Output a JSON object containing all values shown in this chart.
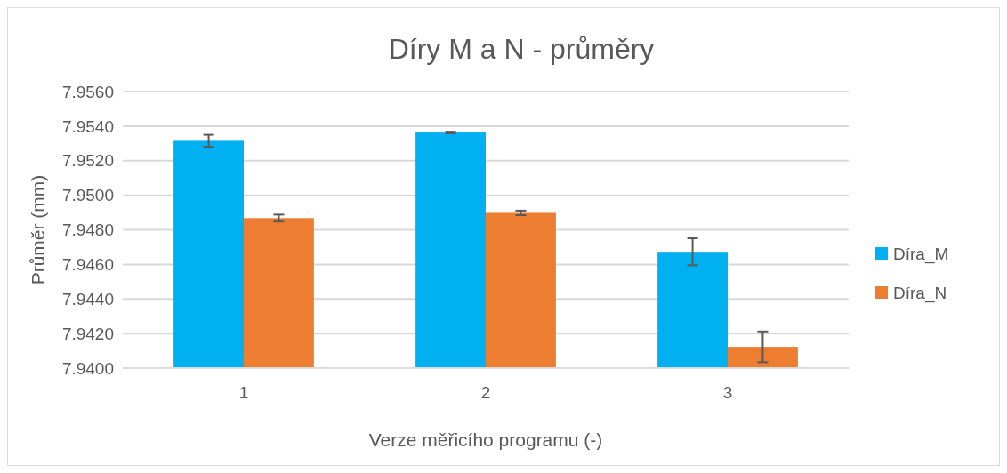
{
  "chart_data": {
    "type": "bar",
    "title": "Díry M a N - průměry",
    "xlabel": "Verze měřicího programu (-)",
    "ylabel": "Průměr (mm)",
    "categories": [
      "1",
      "2",
      "3"
    ],
    "series": [
      {
        "name": "Díra_M",
        "color": "#00b0f0",
        "values": [
          7.95315,
          7.95363,
          7.94673
        ],
        "errors": [
          0.00035,
          5e-05,
          0.00078
        ]
      },
      {
        "name": "Díra_N",
        "color": "#ed7d31",
        "values": [
          7.94868,
          7.94898,
          7.94123
        ],
        "errors": [
          0.0002,
          0.00013,
          0.00089
        ]
      }
    ],
    "ylim": [
      7.94,
      7.956
    ],
    "yticks": [
      {
        "value": 7.94,
        "label": "7.9400"
      },
      {
        "value": 7.942,
        "label": "7.9420"
      },
      {
        "value": 7.944,
        "label": "7.9440"
      },
      {
        "value": 7.946,
        "label": "7.9460"
      },
      {
        "value": 7.948,
        "label": "7.9480"
      },
      {
        "value": 7.95,
        "label": "7.9500"
      },
      {
        "value": 7.952,
        "label": "7.9520"
      },
      {
        "value": 7.954,
        "label": "7.9540"
      },
      {
        "value": 7.956,
        "label": "7.9560"
      }
    ],
    "grid": "y",
    "legend": "right"
  }
}
